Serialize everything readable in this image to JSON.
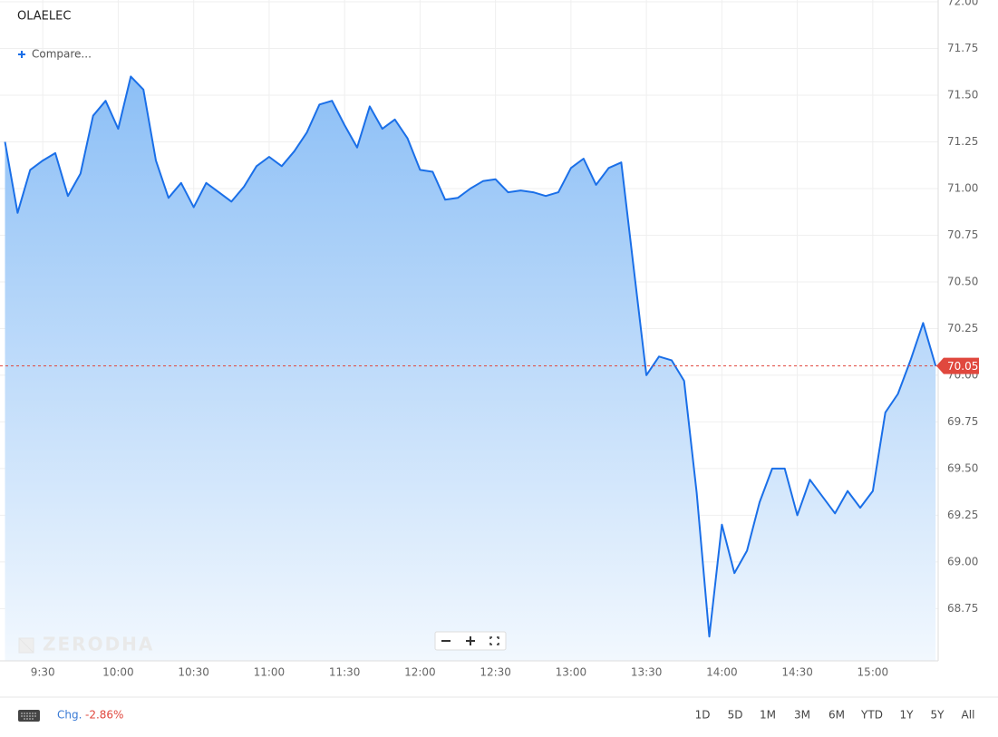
{
  "chart_data": {
    "type": "line",
    "symbol": "OLAELEC",
    "compare_label": "Compare...",
    "watermark": "ZERODHA",
    "x": [
      "9:15",
      "9:20",
      "9:25",
      "9:30",
      "9:35",
      "9:40",
      "9:45",
      "9:50",
      "9:55",
      "10:00",
      "10:05",
      "10:10",
      "10:15",
      "10:20",
      "10:25",
      "10:30",
      "10:35",
      "10:40",
      "10:45",
      "10:50",
      "10:55",
      "11:00",
      "11:05",
      "11:10",
      "11:15",
      "11:20",
      "11:25",
      "11:30",
      "11:35",
      "11:40",
      "11:45",
      "11:50",
      "11:55",
      "12:00",
      "12:05",
      "12:10",
      "12:15",
      "12:20",
      "12:25",
      "12:30",
      "12:35",
      "12:40",
      "12:45",
      "12:50",
      "12:55",
      "13:00",
      "13:05",
      "13:10",
      "13:15",
      "13:20",
      "13:25",
      "13:30",
      "13:35",
      "13:40",
      "13:45",
      "13:50",
      "13:55",
      "14:00",
      "14:05",
      "14:10",
      "14:15",
      "14:20",
      "14:25",
      "14:30",
      "14:35",
      "14:40",
      "14:45",
      "14:50",
      "14:55",
      "15:00",
      "15:05",
      "15:10",
      "15:15",
      "15:20",
      "15:25"
    ],
    "series": [
      {
        "name": "OLAELEC",
        "color": "#1a6fe8",
        "values": [
          71.25,
          70.87,
          71.1,
          71.15,
          71.19,
          70.96,
          71.08,
          71.39,
          71.47,
          71.32,
          71.6,
          71.53,
          71.15,
          70.95,
          71.03,
          70.9,
          71.03,
          70.98,
          70.93,
          71.01,
          71.12,
          71.17,
          71.12,
          71.2,
          71.3,
          71.45,
          71.47,
          71.34,
          71.22,
          71.44,
          71.32,
          71.37,
          71.27,
          71.1,
          71.09,
          70.94,
          70.95,
          71.0,
          71.04,
          71.05,
          70.98,
          70.99,
          70.98,
          70.96,
          70.98,
          71.11,
          71.16,
          71.02,
          71.11,
          71.14,
          70.57,
          70.0,
          70.1,
          70.08,
          69.97,
          69.37,
          68.6,
          69.2,
          68.94,
          69.06,
          69.32,
          69.5,
          69.5,
          69.25,
          69.44,
          69.35,
          69.26,
          69.38,
          69.29,
          69.38,
          69.8,
          69.9,
          70.08,
          70.28,
          70.05
        ]
      }
    ],
    "last_price": 70.05,
    "xlim": [
      "9:13",
      "15:26"
    ],
    "xticks": [
      "9:30",
      "10:00",
      "10:30",
      "11:00",
      "11:30",
      "12:00",
      "12:30",
      "13:00",
      "13:30",
      "14:00",
      "14:30",
      "15:00"
    ],
    "ylim": [
      68.47,
      72.01
    ],
    "yticks": [
      {
        "value": 68.75,
        "label": "68.75"
      },
      {
        "value": 69,
        "label": "69.00"
      },
      {
        "value": 69.25,
        "label": "69.25"
      },
      {
        "value": 69.5,
        "label": "69.50"
      },
      {
        "value": 69.75,
        "label": "69.75"
      },
      {
        "value": 70,
        "label": "70.00"
      },
      {
        "value": 70.25,
        "label": "70.25"
      },
      {
        "value": 70.5,
        "label": "70.50"
      },
      {
        "value": 70.75,
        "label": "70.75"
      },
      {
        "value": 71,
        "label": "71.00"
      },
      {
        "value": 71.25,
        "label": "71.25"
      },
      {
        "value": 71.5,
        "label": "71.50"
      },
      {
        "value": 71.75,
        "label": "71.75"
      },
      {
        "value": 72,
        "label": "72.00"
      }
    ],
    "grid": true,
    "change": {
      "label": "Chg.",
      "value": -2.86,
      "value_label": "-2.86%"
    },
    "ranges": [
      "1D",
      "5D",
      "1M",
      "3M",
      "6M",
      "YTD",
      "1Y",
      "5Y",
      "All"
    ]
  }
}
